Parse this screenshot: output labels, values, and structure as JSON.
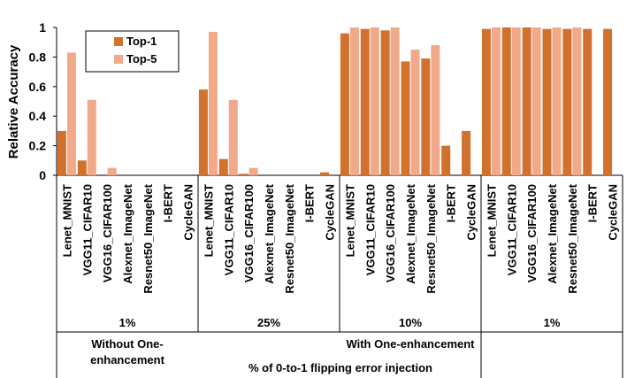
{
  "chart_data": {
    "type": "bar",
    "ylabel": "Relative Accuracy",
    "ylim": [
      0,
      1
    ],
    "yticks": [
      "0",
      "0.2",
      "0.4",
      "0.6",
      "0.8",
      "1"
    ],
    "grid": false,
    "legend_position": "top-left",
    "categories": [
      "Lenet_MNIST",
      "VGG11_CIFAR10",
      "VGG16_CIFAR100",
      "Alexnet_ImageNet",
      "Resnet50_ImageNet",
      "I-BERT",
      "CycleGAN"
    ],
    "series_names": [
      "Top-1",
      "Top-5"
    ],
    "colors": {
      "Top-1": "#D2702D",
      "Top-5": "#F2A98A"
    },
    "groups": [
      {
        "label": "1%",
        "top1": [
          0.3,
          0.1,
          0.0,
          0.0,
          0.0,
          0.0,
          0.0
        ],
        "top5": [
          0.83,
          0.51,
          0.05,
          0.0,
          0.0,
          null,
          null
        ]
      },
      {
        "label": "25%",
        "top1": [
          0.58,
          0.11,
          0.01,
          0.0,
          0.0,
          0.0,
          0.02
        ],
        "top5": [
          0.97,
          0.51,
          0.05,
          0.0,
          0.0,
          null,
          null
        ]
      },
      {
        "label": "10%",
        "top1": [
          0.96,
          0.99,
          0.98,
          0.77,
          0.79,
          0.2,
          0.3
        ],
        "top5": [
          1.0,
          1.0,
          1.0,
          0.85,
          0.88,
          null,
          null
        ]
      },
      {
        "label": "1%",
        "top1": [
          0.99,
          1.0,
          1.0,
          0.99,
          0.99,
          0.99,
          0.99
        ],
        "top5": [
          1.0,
          1.0,
          1.0,
          1.0,
          1.0,
          null,
          null
        ]
      }
    ],
    "supergroups": [
      "Without One-enhancement",
      "With One-enhancement"
    ],
    "xlabel": "% of 0-to-1 flipping error injection"
  }
}
